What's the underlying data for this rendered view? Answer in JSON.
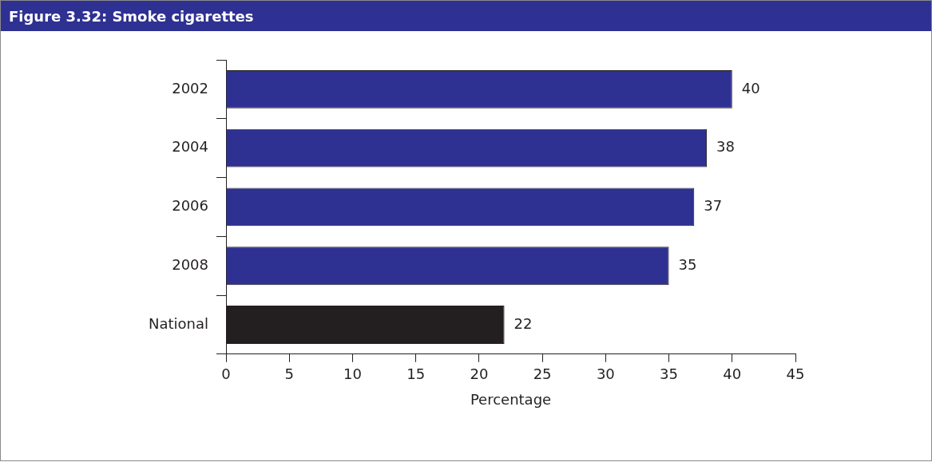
{
  "chart_data": {
    "type": "bar",
    "orientation": "horizontal",
    "title": "Figure 3.32: Smoke cigarettes",
    "xlabel": "Percentage",
    "categories": [
      "2002",
      "2004",
      "2006",
      "2008",
      "National"
    ],
    "values": [
      40,
      38,
      37,
      35,
      22
    ],
    "colors": [
      "#2e3192",
      "#2e3192",
      "#2e3192",
      "#2e3192",
      "#231f20"
    ],
    "xlim": [
      0,
      45
    ],
    "xticks": [
      0,
      5,
      10,
      15,
      20,
      25,
      30,
      35,
      40,
      45
    ],
    "grid": false,
    "legend": false,
    "data_labels": true
  }
}
